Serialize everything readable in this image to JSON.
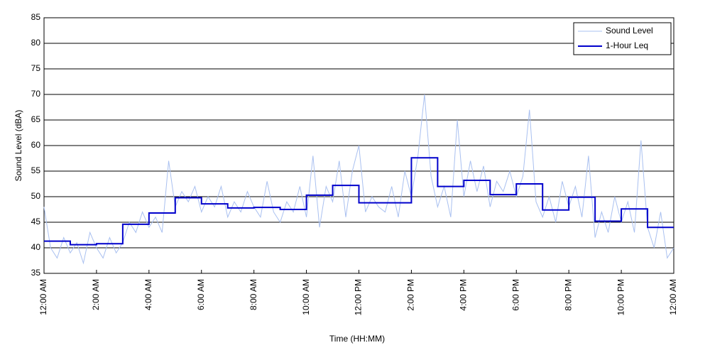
{
  "chart_data": {
    "type": "line",
    "xlabel": "Time (HH:MM)",
    "ylabel": "Sound Level (dBA)",
    "xlim": [
      0,
      24
    ],
    "xticks": [
      {
        "value": 0,
        "label": "12:00 AM"
      },
      {
        "value": 2,
        "label": "2:00 AM"
      },
      {
        "value": 4,
        "label": "4:00 AM"
      },
      {
        "value": 6,
        "label": "6:00 AM"
      },
      {
        "value": 8,
        "label": "8:00 AM"
      },
      {
        "value": 10,
        "label": "10:00 AM"
      },
      {
        "value": 12,
        "label": "12:00 PM"
      },
      {
        "value": 14,
        "label": "2:00 PM"
      },
      {
        "value": 16,
        "label": "4:00 PM"
      },
      {
        "value": 18,
        "label": "6:00 PM"
      },
      {
        "value": 20,
        "label": "8:00 PM"
      },
      {
        "value": 22,
        "label": "10:00 PM"
      },
      {
        "value": 24,
        "label": "12:00 AM"
      }
    ],
    "ylim": [
      35,
      85
    ],
    "yticks": [
      35,
      40,
      45,
      50,
      55,
      60,
      65,
      70,
      75,
      80,
      85
    ],
    "grid": true,
    "legend": "upper right",
    "series": [
      {
        "name": "Sound Level",
        "color": "#a9c0f0",
        "drawstyle": "default",
        "x": [
          0,
          0.25,
          0.5,
          0.75,
          1,
          1.25,
          1.5,
          1.75,
          2,
          2.25,
          2.5,
          2.75,
          3,
          3.25,
          3.5,
          3.75,
          4,
          4.25,
          4.5,
          4.75,
          5,
          5.25,
          5.5,
          5.75,
          6,
          6.25,
          6.5,
          6.75,
          7,
          7.25,
          7.5,
          7.75,
          8,
          8.25,
          8.5,
          8.75,
          9,
          9.25,
          9.5,
          9.75,
          10,
          10.25,
          10.5,
          10.75,
          11,
          11.25,
          11.5,
          11.75,
          12,
          12.25,
          12.5,
          12.75,
          13,
          13.25,
          13.5,
          13.75,
          14,
          14.25,
          14.5,
          14.75,
          15,
          15.25,
          15.5,
          15.75,
          16,
          16.25,
          16.5,
          16.75,
          17,
          17.25,
          17.5,
          17.75,
          18,
          18.25,
          18.5,
          18.75,
          19,
          19.25,
          19.5,
          19.75,
          20,
          20.25,
          20.5,
          20.75,
          21,
          21.25,
          21.5,
          21.75,
          22,
          22.25,
          22.5,
          22.75,
          23,
          23.25,
          23.5,
          23.75,
          24
        ],
        "values": [
          48,
          40,
          38,
          42,
          39,
          41,
          37,
          43,
          40,
          38,
          42,
          39,
          41,
          45,
          43,
          47,
          44,
          46,
          43,
          57,
          48,
          51,
          49,
          52,
          47,
          50,
          48,
          52,
          46,
          49,
          47,
          51,
          48,
          46,
          53,
          47,
          45,
          49,
          47,
          52,
          46,
          58,
          44,
          52,
          49,
          57,
          46,
          55,
          60,
          47,
          50,
          48,
          47,
          52,
          46,
          55,
          50,
          58,
          70,
          54,
          48,
          52,
          46,
          65,
          50,
          57,
          51,
          56,
          48,
          53,
          51,
          55,
          50,
          54,
          67,
          49,
          46,
          50,
          45,
          53,
          48,
          52,
          46,
          58,
          42,
          47,
          43,
          50,
          45,
          49,
          43,
          61,
          44,
          40,
          47,
          38,
          40
        ]
      },
      {
        "name": "1-Hour Leq",
        "color": "#0000cc",
        "drawstyle": "steps-post",
        "x": [
          0,
          1,
          2,
          3,
          4,
          5,
          6,
          7,
          8,
          9,
          10,
          11,
          12,
          13,
          14,
          15,
          16,
          17,
          18,
          19,
          20,
          21,
          22,
          23
        ],
        "values": [
          41.3,
          40.6,
          40.8,
          44.6,
          46.8,
          49.8,
          48.6,
          47.8,
          47.9,
          47.5,
          50.3,
          52.2,
          48.8,
          48.8,
          57.6,
          52.0,
          53.2,
          50.4,
          52.5,
          47.4,
          49.9,
          45.2,
          47.6,
          44.0
        ]
      }
    ]
  }
}
